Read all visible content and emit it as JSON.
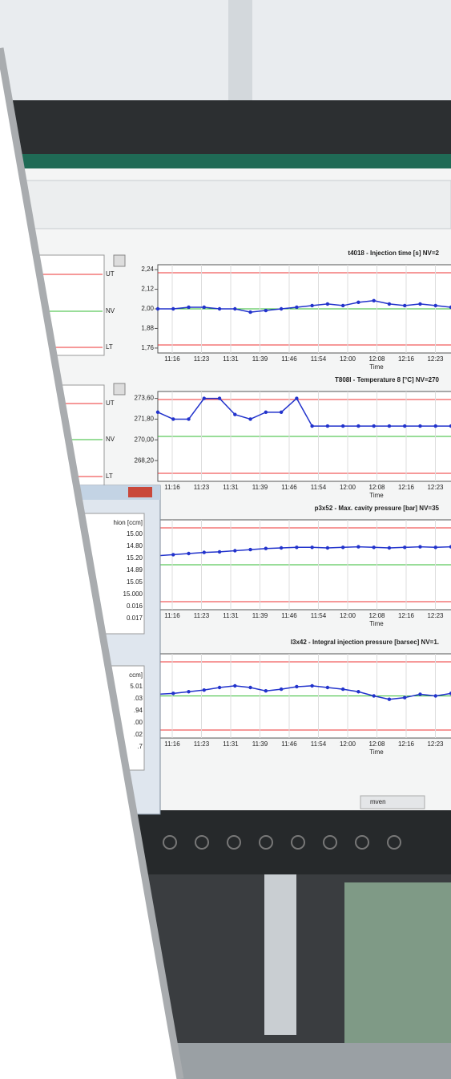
{
  "screen": {
    "panels": [
      {
        "title": "t4018 - Injection time [s]  NV=2",
        "ylim": [
          1.73,
          2.27
        ],
        "yticks": [
          {
            "value": 2.24,
            "label": "2,24"
          },
          {
            "value": 2.12,
            "label": "2,12"
          },
          {
            "value": 2.0,
            "label": "2,00"
          },
          {
            "value": 1.88,
            "label": "1,88"
          },
          {
            "value": 1.76,
            "label": "1,76"
          }
        ],
        "xticks": [
          "11:16",
          "11:23",
          "11:31",
          "11:39",
          "11:46",
          "11:54",
          "12:00",
          "12:08",
          "12:16",
          "12:23"
        ],
        "x_label": "Time",
        "values": [
          2.0,
          2.0,
          2.01,
          2.01,
          2.0,
          2.0,
          1.98,
          1.99,
          2.0,
          2.01,
          2.02,
          2.03,
          2.02,
          2.04,
          2.05,
          2.03,
          2.02,
          2.03,
          2.02,
          2.01
        ]
      },
      {
        "title": "T808I - Temperature 8 [°C]  NV=270",
        "ylim": [
          266.4,
          274.2
        ],
        "yticks": [
          {
            "value": 273.6,
            "label": "273,60"
          },
          {
            "value": 271.8,
            "label": "271,80"
          },
          {
            "value": 270.0,
            "label": "270,00"
          },
          {
            "value": 268.2,
            "label": "268,20"
          }
        ],
        "xticks": [
          "11:16",
          "11:23",
          "11:31",
          "11:39",
          "11:46",
          "11:54",
          "12:00",
          "12:08",
          "12:16",
          "12:23"
        ],
        "x_label": "Time",
        "values": [
          272.4,
          271.8,
          271.8,
          273.6,
          273.6,
          272.2,
          271.8,
          272.4,
          272.4,
          273.6,
          271.2,
          271.2,
          271.2,
          271.2,
          271.2,
          271.2,
          271.2,
          271.2,
          271.2,
          271.2
        ]
      },
      {
        "title": "p3x52 - Max. cavity pressure [bar]  NV=35",
        "ylim": [
          28,
          44
        ],
        "xticks": [
          "11:16",
          "11:23",
          "11:31",
          "11:39",
          "11:46",
          "11:54",
          "12:00",
          "12:08",
          "12:16",
          "12:23"
        ],
        "x_label": "Time",
        "values": [
          37.6,
          37.8,
          38.0,
          38.2,
          38.3,
          38.5,
          38.7,
          38.9,
          39.0,
          39.1,
          39.1,
          39.0,
          39.1,
          39.2,
          39.1,
          39.0,
          39.1,
          39.2,
          39.1,
          39.2
        ]
      },
      {
        "title": "I3x42 - Integral injection pressure [barsec]  NV=1.",
        "ylim": [
          1.0,
          2.0
        ],
        "xticks": [
          "11:16",
          "11:23",
          "11:31",
          "11:39",
          "11:46",
          "11:54",
          "12:00",
          "12:08",
          "12:16",
          "12:23"
        ],
        "x_label": "Time",
        "values": [
          1.52,
          1.53,
          1.55,
          1.57,
          1.6,
          1.62,
          1.6,
          1.56,
          1.58,
          1.61,
          1.62,
          1.6,
          1.58,
          1.55,
          1.5,
          1.46,
          1.48,
          1.52,
          1.5,
          1.53
        ]
      }
    ],
    "side_labels": [
      "UT",
      "NV",
      "LT"
    ],
    "dialog": {
      "header1": "hion [ccm]",
      "rows1": [
        "15.00",
        "14.80",
        "15.20",
        "14.89",
        "15.05",
        "15.000",
        "0.016",
        "0.017"
      ],
      "header2": "ccm]",
      "rows2": [
        "5.01",
        ".03",
        ".94",
        ".00",
        ".02",
        ".7"
      ]
    },
    "taskbar": "mven"
  }
}
